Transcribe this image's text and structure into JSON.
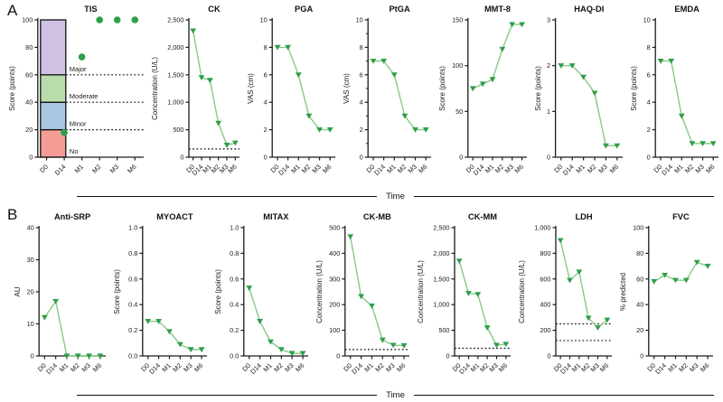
{
  "panels": {
    "a_label": "A",
    "b_label": "B"
  },
  "time_axis_label": "Time",
  "categories": [
    "D0",
    "D14",
    "M1",
    "M2",
    "M3",
    "M6"
  ],
  "colors": {
    "marker_green": "#2f9e4a",
    "line_green": "#85cb85",
    "axis_black": "#1a1a1a",
    "band_no": "#f59c95",
    "band_minor": "#a9c6e2",
    "band_moderate": "#b9dcab",
    "band_major": "#cfc0e4"
  },
  "chart_data": [
    {
      "id": "tis",
      "title": "TIS",
      "type": "scatter",
      "marker": "circle",
      "ylabel": "Score (points)",
      "ymin": 0,
      "ymax": 100,
      "yticks": [
        0,
        20,
        40,
        60,
        80,
        100
      ],
      "ytick_labels": [
        "0",
        "20",
        "40",
        "60",
        "80",
        "100"
      ],
      "values": [
        null,
        18,
        73,
        100,
        100,
        100
      ],
      "ref_lines": [
        20,
        40,
        60
      ],
      "ref_from_bar": true,
      "bands": [
        {
          "label": "No",
          "from": 0,
          "to": 20,
          "color": "#f59c95"
        },
        {
          "label": "Minor",
          "from": 20,
          "to": 40,
          "color": "#a9c6e2"
        },
        {
          "label": "Moderate",
          "from": 40,
          "to": 60,
          "color": "#b9dcab"
        },
        {
          "label": "Major",
          "from": 60,
          "to": 100,
          "color": "#cfc0e4"
        }
      ]
    },
    {
      "id": "ck",
      "title": "CK",
      "type": "line",
      "marker": "triangle",
      "ylabel": "Concentration (U/L)",
      "ymin": 0,
      "ymax": 2500,
      "yticks": [
        0,
        500,
        1000,
        1500,
        2000,
        2500
      ],
      "ytick_labels": [
        "0",
        "500",
        "1,000",
        "1,500",
        "2,000",
        "2,500"
      ],
      "values": [
        2300,
        1450,
        1400,
        620,
        220,
        260
      ],
      "ref_lines": [
        150
      ]
    },
    {
      "id": "pga",
      "title": "PGA",
      "type": "line",
      "marker": "triangle",
      "ylabel": "VAS (cm)",
      "ymin": 0,
      "ymax": 10,
      "yticks": [
        0,
        2,
        4,
        6,
        8,
        10
      ],
      "ytick_labels": [
        "0",
        "2",
        "4",
        "6",
        "8",
        "10"
      ],
      "values": [
        8,
        8,
        6,
        3,
        2,
        2
      ],
      "ref_lines": []
    },
    {
      "id": "ptga",
      "title": "PtGA",
      "type": "line",
      "marker": "triangle",
      "ylabel": "VAS (cm)",
      "ymin": 0,
      "ymax": 10,
      "yticks": [
        0,
        2,
        4,
        6,
        8,
        10
      ],
      "ytick_labels": [
        "0",
        "2",
        "4",
        "6",
        "8",
        "10"
      ],
      "yminor": [
        1,
        3,
        5,
        7,
        9
      ],
      "values": [
        7,
        7,
        6,
        3,
        2,
        2
      ],
      "ref_lines": []
    },
    {
      "id": "mmt8",
      "title": "MMT-8",
      "type": "line",
      "marker": "triangle",
      "ylabel": "Score (points)",
      "ymin": 0,
      "ymax": 150,
      "yticks": [
        0,
        50,
        100,
        150
      ],
      "ytick_labels": [
        "0",
        "50",
        "100",
        "150"
      ],
      "values": [
        75,
        80,
        85,
        118,
        145,
        145
      ],
      "ref_lines": []
    },
    {
      "id": "haqdi",
      "title": "HAQ-DI",
      "type": "line",
      "marker": "triangle",
      "ylabel": "Score (points)",
      "ymin": 0,
      "ymax": 3,
      "yticks": [
        0,
        1,
        2,
        3
      ],
      "ytick_labels": [
        "0",
        "1",
        "2",
        "3"
      ],
      "values": [
        2,
        2,
        1.75,
        1.4,
        0.25,
        0.25
      ],
      "ref_lines": []
    },
    {
      "id": "emda",
      "title": "EMDA",
      "type": "line",
      "marker": "triangle",
      "ylabel": "Score (points)",
      "ymin": 0,
      "ymax": 10,
      "yticks": [
        0,
        2,
        4,
        6,
        8,
        10
      ],
      "ytick_labels": [
        "0",
        "2",
        "4",
        "6",
        "8",
        "10"
      ],
      "values": [
        7,
        7,
        3,
        1,
        1,
        1
      ],
      "ref_lines": []
    },
    {
      "id": "antisrp",
      "title": "Anti-SRP",
      "type": "line",
      "marker": "triangle",
      "ylabel": "AU",
      "ymin": 0,
      "ymax": 40,
      "yticks": [
        0,
        10,
        20,
        30,
        40
      ],
      "ytick_labels": [
        "0",
        "10",
        "20",
        "30",
        "40"
      ],
      "values": [
        12,
        17,
        0,
        0,
        0,
        0
      ],
      "ref_lines": []
    },
    {
      "id": "myoact",
      "title": "MYOACT",
      "type": "line",
      "marker": "triangle",
      "ylabel": "Score (points)",
      "ymin": 0,
      "ymax": 1,
      "yticks": [
        0,
        0.2,
        0.4,
        0.6,
        0.8,
        1
      ],
      "ytick_labels": [
        "0.0",
        "0.2",
        "0.4",
        "0.6",
        "0.8",
        "1.0"
      ],
      "values": [
        0.27,
        0.27,
        0.19,
        0.09,
        0.05,
        0.05
      ],
      "ref_lines": []
    },
    {
      "id": "mitax",
      "title": "MITAX",
      "type": "line",
      "marker": "triangle",
      "ylabel": "Score (points)",
      "ymin": 0,
      "ymax": 1,
      "yticks": [
        0,
        0.2,
        0.4,
        0.6,
        0.8,
        1
      ],
      "ytick_labels": [
        "0.0",
        "0.2",
        "0.4",
        "0.6",
        "0.8",
        "1.0"
      ],
      "values": [
        0.53,
        0.27,
        0.11,
        0.05,
        0.02,
        0.02
      ],
      "ref_lines": []
    },
    {
      "id": "ckmb",
      "title": "CK-MB",
      "type": "line",
      "marker": "triangle",
      "ylabel": "Concentration (U/L)",
      "ymin": 0,
      "ymax": 500,
      "yticks": [
        0,
        100,
        200,
        300,
        400,
        500
      ],
      "ytick_labels": [
        "0",
        "100",
        "200",
        "300",
        "400",
        "500"
      ],
      "values": [
        465,
        232,
        195,
        62,
        42,
        40
      ],
      "ref_lines": [
        25
      ]
    },
    {
      "id": "ckmm",
      "title": "CK-MM",
      "type": "line",
      "marker": "triangle",
      "ylabel": "Concentration (U/L)",
      "ymin": 0,
      "ymax": 2500,
      "yticks": [
        0,
        500,
        1000,
        1500,
        2000,
        2500
      ],
      "ytick_labels": [
        "0",
        "500",
        "1,000",
        "1,500",
        "2,000",
        "2,500"
      ],
      "values": [
        1850,
        1220,
        1200,
        550,
        210,
        230
      ],
      "ref_lines": [
        150
      ]
    },
    {
      "id": "ldh",
      "title": "LDH",
      "type": "line",
      "marker": "triangle",
      "ylabel": "Concentration (U/L)",
      "ymin": 0,
      "ymax": 1000,
      "yticks": [
        0,
        200,
        400,
        600,
        800,
        1000
      ],
      "ytick_labels": [
        "0",
        "200",
        "400",
        "600",
        "800",
        "1,000"
      ],
      "values": [
        900,
        590,
        655,
        295,
        220,
        280
      ],
      "ref_lines": [
        250,
        120
      ]
    },
    {
      "id": "fvc",
      "title": "FVC",
      "type": "line",
      "marker": "triangle",
      "ylabel": "% predicted",
      "ymin": 0,
      "ymax": 100,
      "yticks": [
        0,
        20,
        40,
        60,
        80,
        100
      ],
      "ytick_labels": [
        "0",
        "20",
        "40",
        "60",
        "80",
        "100"
      ],
      "values": [
        58,
        63,
        59,
        59,
        73,
        70
      ],
      "ref_lines": []
    }
  ]
}
